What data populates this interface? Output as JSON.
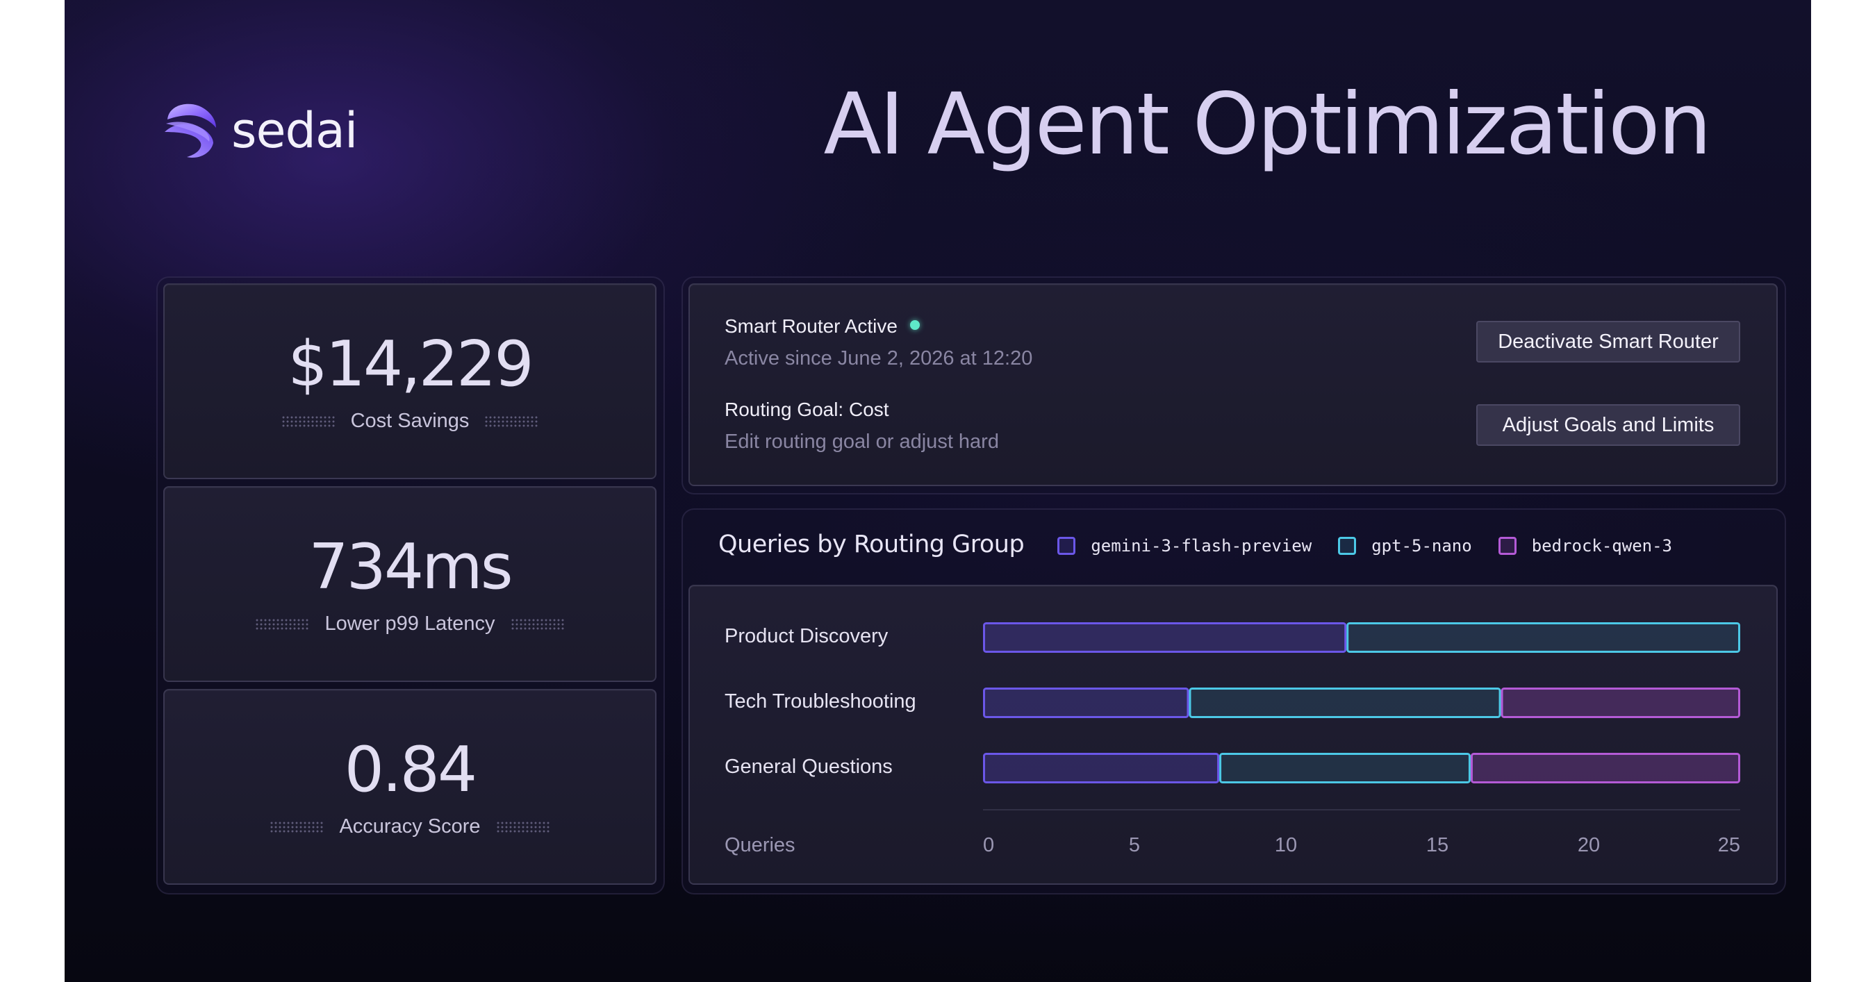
{
  "brand": {
    "name": "sedai"
  },
  "headline": "AI Agent Optimization",
  "metrics": [
    {
      "value": "$14,229",
      "label": "Cost Savings"
    },
    {
      "value": "734ms",
      "label": "Lower p99 Latency"
    },
    {
      "value": "0.84",
      "label": "Accuracy Score"
    }
  ],
  "router": {
    "status_title": "Smart Router Active",
    "status_sub": "Active since June 2, 2026 at 12:20",
    "goal_title": "Routing Goal: Cost",
    "goal_sub": "Edit routing goal or adjust hard",
    "deactivate_label": "Deactivate Smart Router",
    "adjust_label": "Adjust Goals and Limits"
  },
  "colors": {
    "gemini": "#6b57e8",
    "gpt": "#4cc8e6",
    "bedrock": "#b45ad6",
    "status_active": "#5ee9c9"
  },
  "chart_data": {
    "type": "bar",
    "stacked": true,
    "orientation": "horizontal",
    "title": "Queries by Routing Group",
    "xlabel": "Queries",
    "xlim": [
      0,
      25
    ],
    "xticks": [
      0,
      5,
      10,
      15,
      20,
      25
    ],
    "legend_position": "top-right",
    "categories": [
      "Product Discovery",
      "Tech Troubleshooting",
      "General Questions"
    ],
    "series": [
      {
        "name": "gemini-3-flash-preview",
        "values": [
          12,
          6.8,
          7.8
        ]
      },
      {
        "name": "gpt-5-nano",
        "values": [
          13,
          10.3,
          8.3
        ]
      },
      {
        "name": "bedrock-qwen-3",
        "values": [
          0,
          7.9,
          8.9
        ]
      }
    ]
  }
}
